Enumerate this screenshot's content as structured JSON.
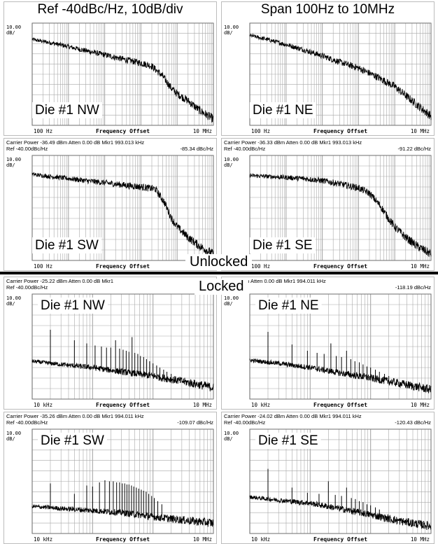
{
  "header": {
    "left_title": "Ref -40dBc/Hz, 10dB/div",
    "right_title": "Span 100Hz to 10MHz"
  },
  "section_labels": {
    "unlocked": "Unlocked",
    "locked": "Locked"
  },
  "colors": {
    "trace": "#000000",
    "grid": "#a8a8a8",
    "frame": "#6e6e6e",
    "panel_border": "#bcbcbc"
  },
  "chart_data": [
    {
      "id": "unlocked-nw",
      "type": "line",
      "group": "Unlocked",
      "label": "Die #1 NW",
      "carrier_line": "",
      "ref_line": "",
      "marker_line": "",
      "marker_value_line": "",
      "scale_label_top": "10.00",
      "scale_label_bottom": "dB/",
      "x_start_label": "100 Hz",
      "x_center_label": "Frequency Offset",
      "x_end_label": "10 MHz",
      "x_axis": "log",
      "xlim": [
        100,
        10000000
      ],
      "ylim": [
        0,
        10
      ],
      "trace_points": [
        [
          100,
          8.4
        ],
        [
          300,
          8.1
        ],
        [
          1000,
          7.7
        ],
        [
          3000,
          7.3
        ],
        [
          10000,
          6.9
        ],
        [
          30000,
          6.5
        ],
        [
          100000,
          6.1
        ],
        [
          200000,
          5.8
        ],
        [
          400000,
          4.8
        ],
        [
          700000,
          3.6
        ],
        [
          1000000,
          3.1
        ],
        [
          2000000,
          2.4
        ],
        [
          4000000,
          1.5
        ],
        [
          10000000,
          0.6
        ]
      ],
      "spurs": []
    },
    {
      "id": "unlocked-ne",
      "type": "line",
      "group": "Unlocked",
      "label": "Die #1 NE",
      "carrier_line": "",
      "ref_line": "",
      "marker_line": "",
      "marker_value_line": "",
      "scale_label_top": "10.00",
      "scale_label_bottom": "dB/",
      "x_start_label": "100 Hz",
      "x_center_label": "Frequency Offset",
      "x_end_label": "10 MHz",
      "x_axis": "log",
      "xlim": [
        100,
        10000000
      ],
      "ylim": [
        0,
        10
      ],
      "trace_points": [
        [
          100,
          8.8
        ],
        [
          300,
          8.4
        ],
        [
          1000,
          7.9
        ],
        [
          3000,
          7.4
        ],
        [
          10000,
          6.8
        ],
        [
          30000,
          6.2
        ],
        [
          100000,
          5.6
        ],
        [
          300000,
          4.8
        ],
        [
          1000000,
          3.8
        ],
        [
          3000000,
          2.4
        ],
        [
          10000000,
          0.9
        ]
      ],
      "spurs": []
    },
    {
      "id": "unlocked-sw",
      "type": "line",
      "group": "Unlocked",
      "label": "Die #1 SW",
      "carrier_line": "Carrier Power -36.49 dBm   Atten 0.00 dB      Mkr1      993.013 kHz",
      "ref_line": "Ref -40.00dBc/Hz",
      "marker_value_line": "-85.34 dBc/Hz",
      "scale_label_top": "10.00",
      "scale_label_bottom": "dB/",
      "x_start_label": "100 Hz",
      "x_center_label": "Frequency Offset",
      "x_end_label": "10 MHz",
      "x_axis": "log",
      "xlim": [
        100,
        10000000
      ],
      "ylim": [
        0,
        10
      ],
      "trace_points": [
        [
          100,
          8.2
        ],
        [
          300,
          8.0
        ],
        [
          1000,
          7.8
        ],
        [
          3000,
          7.6
        ],
        [
          10000,
          7.4
        ],
        [
          30000,
          7.2
        ],
        [
          100000,
          7.0
        ],
        [
          250000,
          6.8
        ],
        [
          450000,
          5.5
        ],
        [
          700000,
          4.0
        ],
        [
          1000000,
          3.2
        ],
        [
          2000000,
          2.2
        ],
        [
          4000000,
          1.4
        ],
        [
          10000000,
          0.6
        ]
      ],
      "spurs": []
    },
    {
      "id": "unlocked-se",
      "type": "line",
      "group": "Unlocked",
      "label": "Die #1 SE",
      "carrier_line": "Carrier Power -36.33 dBm   Atten 0.00 dB      Mkr1      993.013 kHz",
      "ref_line": "Ref -40.00dBc/Hz",
      "marker_value_line": "-91.22 dBc/Hz",
      "scale_label_top": "10.00",
      "scale_label_bottom": "dB/",
      "x_start_label": "100 Hz",
      "x_center_label": "Frequency Offset",
      "x_end_label": "10 MHz",
      "x_axis": "log",
      "xlim": [
        100,
        10000000
      ],
      "ylim": [
        0,
        10
      ],
      "trace_points": [
        [
          100,
          8.1
        ],
        [
          300,
          8.0
        ],
        [
          1000,
          7.9
        ],
        [
          3000,
          7.8
        ],
        [
          10000,
          7.6
        ],
        [
          30000,
          7.3
        ],
        [
          100000,
          6.9
        ],
        [
          200000,
          6.4
        ],
        [
          400000,
          5.2
        ],
        [
          700000,
          3.9
        ],
        [
          1000000,
          3.2
        ],
        [
          2000000,
          2.2
        ],
        [
          4000000,
          1.4
        ],
        [
          10000000,
          0.6
        ]
      ],
      "spurs": []
    },
    {
      "id": "locked-nw",
      "type": "line",
      "group": "Locked",
      "label": "Die #1 NW",
      "carrier_line": "Carrier Power -25.22 dBm   Atten 0.00 dB      Mkr1",
      "ref_line": "Ref -40.00dBc/Hz",
      "marker_value_line": "",
      "scale_label_top": "10.00",
      "scale_label_bottom": "dB/",
      "x_start_label": "10 kHz",
      "x_center_label": "Frequency Offset",
      "x_end_label": "10 MHz",
      "x_axis": "log",
      "xlim": [
        10000,
        10000000
      ],
      "ylim": [
        0,
        10
      ],
      "trace_points": [
        [
          10000,
          3.6
        ],
        [
          30000,
          3.3
        ],
        [
          100000,
          3.0
        ],
        [
          300000,
          2.6
        ],
        [
          1000000,
          2.2
        ],
        [
          3000000,
          1.7
        ],
        [
          10000000,
          1.1
        ]
      ],
      "spurs": [
        [
          20000,
          6.6
        ],
        [
          50000,
          5.6
        ],
        [
          80000,
          5.3
        ],
        [
          110000,
          5.1
        ],
        [
          140000,
          5.0
        ],
        [
          170000,
          4.9
        ],
        [
          200000,
          4.9
        ],
        [
          240000,
          5.6
        ],
        [
          280000,
          4.8
        ],
        [
          320000,
          4.7
        ],
        [
          360000,
          4.6
        ],
        [
          400000,
          4.5
        ],
        [
          450000,
          5.9
        ],
        [
          500000,
          4.4
        ],
        [
          560000,
          4.3
        ],
        [
          620000,
          4.1
        ],
        [
          700000,
          4.0
        ],
        [
          780000,
          3.8
        ],
        [
          880000,
          3.6
        ],
        [
          1000000,
          3.4
        ],
        [
          1150000,
          3.2
        ],
        [
          1300000,
          3.0
        ],
        [
          1500000,
          2.8
        ],
        [
          1700000,
          2.6
        ],
        [
          2000000,
          2.4
        ]
      ]
    },
    {
      "id": "locked-ne",
      "type": "line",
      "group": "Locked",
      "label": "Die #1 NE",
      "carrier_line": "18.97 dBm   Atten 0.00 dB      Mkr1      994.011 kHz",
      "ref_line": "",
      "marker_value_line": "-118.19 dBc/Hz",
      "scale_label_top": "10.00",
      "scale_label_bottom": "dB/",
      "x_start_label": "10 kHz",
      "x_center_label": "Frequency Offset",
      "x_end_label": "10 MHz",
      "x_axis": "log",
      "xlim": [
        10000,
        10000000
      ],
      "ylim": [
        0,
        10
      ],
      "trace_points": [
        [
          10000,
          3.7
        ],
        [
          30000,
          3.4
        ],
        [
          100000,
          3.0
        ],
        [
          300000,
          2.5
        ],
        [
          1000000,
          2.0
        ],
        [
          3000000,
          1.5
        ],
        [
          10000000,
          0.9
        ]
      ],
      "spurs": [
        [
          20000,
          6.4
        ],
        [
          50000,
          5.2
        ],
        [
          90000,
          4.6
        ],
        [
          130000,
          4.4
        ],
        [
          170000,
          4.3
        ],
        [
          220000,
          5.3
        ],
        [
          270000,
          4.1
        ],
        [
          330000,
          4.0
        ],
        [
          400000,
          4.6
        ],
        [
          470000,
          3.8
        ],
        [
          550000,
          3.6
        ],
        [
          650000,
          3.5
        ],
        [
          750000,
          3.3
        ],
        [
          870000,
          3.1
        ],
        [
          1000000,
          3.0
        ],
        [
          1200000,
          2.8
        ],
        [
          1400000,
          2.6
        ],
        [
          1700000,
          2.4
        ],
        [
          2000000,
          2.2
        ]
      ]
    },
    {
      "id": "locked-sw",
      "type": "line",
      "group": "Locked",
      "label": "Die #1 SW",
      "carrier_line": "Carrier Power -35.26 dBm   Atten 0.00 dB      Mkr1      994.011 kHz",
      "ref_line": "Ref -40.00dBc/Hz",
      "marker_value_line": "-109.07 dBc/Hz",
      "scale_label_top": "10.00",
      "scale_label_bottom": "dB/",
      "x_start_label": "10 kHz",
      "x_center_label": "Frequency Offset",
      "x_end_label": "10 MHz",
      "x_axis": "log",
      "xlim": [
        10000,
        10000000
      ],
      "ylim": [
        0,
        10
      ],
      "trace_points": [
        [
          10000,
          2.6
        ],
        [
          30000,
          2.4
        ],
        [
          100000,
          2.2
        ],
        [
          300000,
          2.0
        ],
        [
          1000000,
          1.6
        ],
        [
          3000000,
          1.3
        ],
        [
          10000000,
          1.0
        ]
      ],
      "spurs": [
        [
          20000,
          4.8
        ],
        [
          50000,
          3.8
        ],
        [
          80000,
          4.6
        ],
        [
          100000,
          4.5
        ],
        [
          130000,
          4.9
        ],
        [
          160000,
          5.1
        ],
        [
          190000,
          5.0
        ],
        [
          220000,
          5.0
        ],
        [
          250000,
          4.9
        ],
        [
          280000,
          4.9
        ],
        [
          310000,
          4.8
        ],
        [
          340000,
          4.8
        ],
        [
          370000,
          4.7
        ],
        [
          400000,
          4.7
        ],
        [
          440000,
          4.6
        ],
        [
          480000,
          4.5
        ],
        [
          530000,
          4.4
        ],
        [
          580000,
          4.3
        ],
        [
          640000,
          4.2
        ],
        [
          700000,
          4.1
        ],
        [
          770000,
          4.0
        ],
        [
          850000,
          3.8
        ],
        [
          950000,
          3.6
        ],
        [
          1050000,
          3.4
        ],
        [
          1200000,
          3.1
        ],
        [
          1400000,
          2.8
        ]
      ]
    },
    {
      "id": "locked-se",
      "type": "line",
      "group": "Locked",
      "label": "Die #1 SE",
      "carrier_line": "Carrier Power -24.02 dBm   Atten 0.00 dB      Mkr1      994.011 kHz",
      "ref_line": "Ref -40.00dBc/Hz",
      "marker_value_line": "-120.43 dBc/Hz",
      "scale_label_top": "10.00",
      "scale_label_bottom": "dB/",
      "x_start_label": "10 kHz",
      "x_center_label": "Frequency Offset",
      "x_end_label": "10 MHz",
      "x_axis": "log",
      "xlim": [
        10000,
        10000000
      ],
      "ylim": [
        0,
        10
      ],
      "trace_points": [
        [
          10000,
          3.5
        ],
        [
          30000,
          3.2
        ],
        [
          100000,
          2.9
        ],
        [
          300000,
          2.4
        ],
        [
          1000000,
          1.8
        ],
        [
          3000000,
          1.2
        ],
        [
          10000000,
          0.7
        ]
      ],
      "spurs": [
        [
          20000,
          6.2
        ],
        [
          50000,
          4.4
        ],
        [
          90000,
          3.9
        ],
        [
          140000,
          3.8
        ],
        [
          200000,
          5.0
        ],
        [
          260000,
          3.7
        ],
        [
          330000,
          3.6
        ],
        [
          400000,
          4.4
        ],
        [
          480000,
          3.4
        ],
        [
          560000,
          3.3
        ],
        [
          650000,
          3.1
        ],
        [
          750000,
          3.0
        ],
        [
          870000,
          2.8
        ],
        [
          1000000,
          2.7
        ],
        [
          1200000,
          2.5
        ],
        [
          1400000,
          2.3
        ]
      ]
    }
  ]
}
